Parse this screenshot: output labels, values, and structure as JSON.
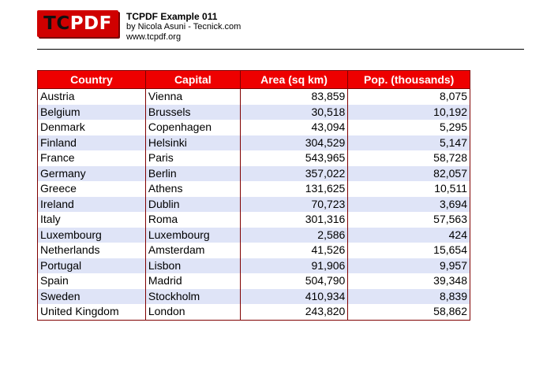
{
  "header": {
    "logo": {
      "tc": "TC",
      "pdf": "PDF"
    },
    "title": "TCPDF Example 011",
    "author": "by Nicola Asuni - Tecnick.com",
    "website": "www.tcpdf.org"
  },
  "colors": {
    "header_bg": "#ee0000",
    "border": "#800000",
    "stripe": "#dfe4f7",
    "logo_bg": "#d00000"
  },
  "table": {
    "columns": [
      "Country",
      "Capital",
      "Area (sq km)",
      "Pop. (thousands)"
    ],
    "rows": [
      [
        "Austria",
        "Vienna",
        "83,859",
        "8,075"
      ],
      [
        "Belgium",
        "Brussels",
        "30,518",
        "10,192"
      ],
      [
        "Denmark",
        "Copenhagen",
        "43,094",
        "5,295"
      ],
      [
        "Finland",
        "Helsinki",
        "304,529",
        "5,147"
      ],
      [
        "France",
        "Paris",
        "543,965",
        "58,728"
      ],
      [
        "Germany",
        "Berlin",
        "357,022",
        "82,057"
      ],
      [
        "Greece",
        "Athens",
        "131,625",
        "10,511"
      ],
      [
        "Ireland",
        "Dublin",
        "70,723",
        "3,694"
      ],
      [
        "Italy",
        "Roma",
        "301,316",
        "57,563"
      ],
      [
        "Luxembourg",
        "Luxembourg",
        "2,586",
        "424"
      ],
      [
        "Netherlands",
        "Amsterdam",
        "41,526",
        "15,654"
      ],
      [
        "Portugal",
        "Lisbon",
        "91,906",
        "9,957"
      ],
      [
        "Spain",
        "Madrid",
        "504,790",
        "39,348"
      ],
      [
        "Sweden",
        "Stockholm",
        "410,934",
        "8,839"
      ],
      [
        "United Kingdom",
        "London",
        "243,820",
        "58,862"
      ]
    ]
  }
}
